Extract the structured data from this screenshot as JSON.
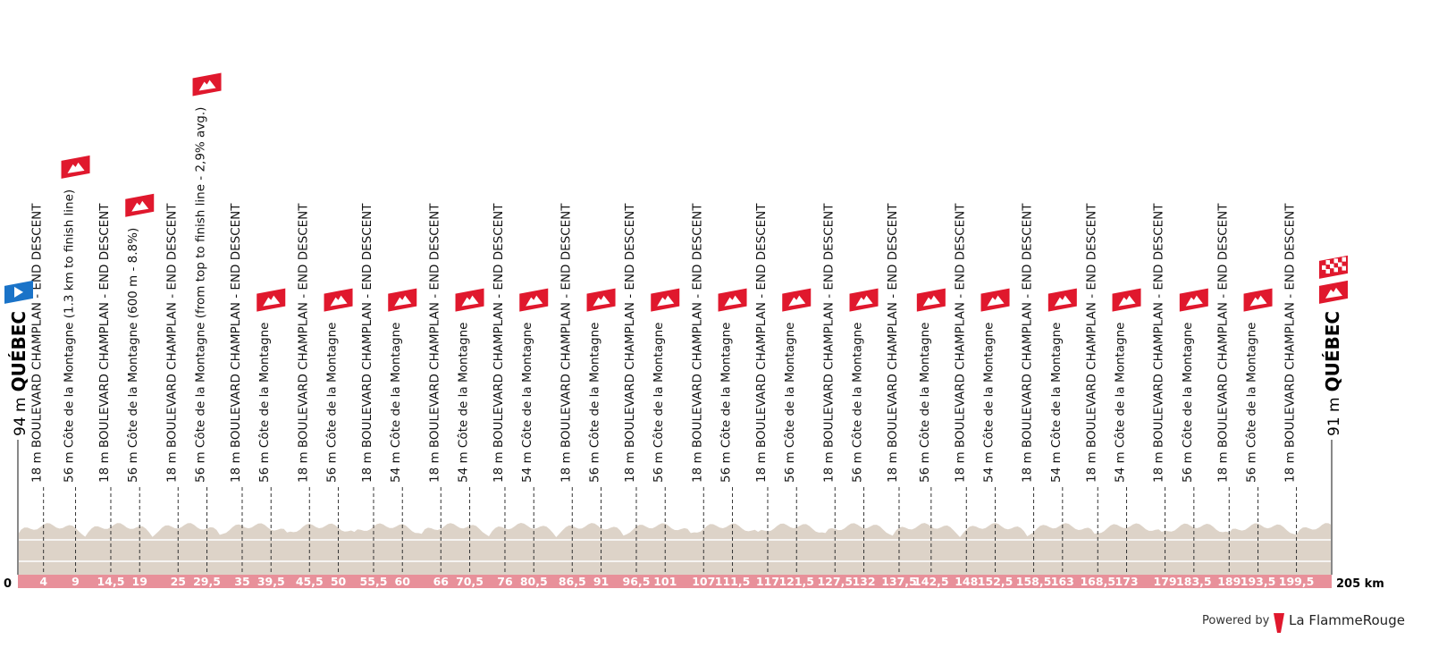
{
  "start": {
    "altitude": "94 m",
    "name": "QUÉBEC"
  },
  "finish": {
    "altitude": "91 m",
    "name": "QUÉBEC"
  },
  "axis": {
    "start": 0,
    "end": 205,
    "end_label": "205 km"
  },
  "waypoints": [
    {
      "km": 4,
      "label": "18 m BOULEVARD CHAMPLAN - END DESCENT"
    },
    {
      "km": 9,
      "label": "56 m Côte de la Montagne (1.3 km to finish line)",
      "flag": "climb"
    },
    {
      "km": {
        "value": 14.5,
        "label": "14,5"
      },
      "label": "18 m BOULEVARD CHAMPLAN - END DESCENT"
    },
    {
      "km": 19,
      "label": "56 m Côte de la Montagne (600 m - 8.8%)",
      "flag": "climb"
    },
    {
      "km": 25,
      "label": "18 m BOULEVARD CHAMPLAN - END DESCENT"
    },
    {
      "km": {
        "value": 29.5,
        "label": "29,5"
      },
      "label": "56 m Côte de la Montagne (from top to finish line - 2,9% avg.)",
      "flag": "climb"
    },
    {
      "km": 35,
      "label": "18 m BOULEVARD CHAMPLAN - END DESCENT"
    },
    {
      "km": {
        "value": 39.5,
        "label": "39,5"
      },
      "label": "56 m Côte de la Montagne",
      "flag": "climb"
    },
    {
      "km": {
        "value": 45.5,
        "label": "45,5"
      },
      "label": "18 m BOULEVARD CHAMPLAN - END DESCENT"
    },
    {
      "km": 50,
      "label": "56 m Côte de la Montagne",
      "flag": "climb"
    },
    {
      "km": {
        "value": 55.5,
        "label": "55,5"
      },
      "label": "18 m BOULEVARD CHAMPLAN - END DESCENT"
    },
    {
      "km": 60,
      "label": "54 m Côte de la Montagne",
      "flag": "climb"
    },
    {
      "km": 66,
      "label": "18 m BOULEVARD CHAMPLAN - END DESCENT"
    },
    {
      "km": {
        "value": 70.5,
        "label": "70,5"
      },
      "label": "54 m Côte de la Montagne",
      "flag": "climb"
    },
    {
      "km": 76,
      "label": "18 m BOULEVARD CHAMPLAN - END DESCENT"
    },
    {
      "km": {
        "value": 80.5,
        "label": "80,5"
      },
      "label": "54 m Côte de la Montagne",
      "flag": "climb"
    },
    {
      "km": {
        "value": 86.5,
        "label": "86,5"
      },
      "label": "18 m BOULEVARD CHAMPLAN - END DESCENT"
    },
    {
      "km": 91,
      "label": "56 m Côte de la Montagne",
      "flag": "climb"
    },
    {
      "km": {
        "value": 96.5,
        "label": "96,5"
      },
      "label": "18 m BOULEVARD CHAMPLAN - END DESCENT"
    },
    {
      "km": 101,
      "label": "56 m Côte de la Montagne",
      "flag": "climb"
    },
    {
      "km": 107,
      "label": "18 m BOULEVARD CHAMPLAN - END DESCENT"
    },
    {
      "km": {
        "value": 111.5,
        "label": "111,5"
      },
      "label": "56 m Côte de la Montagne",
      "flag": "climb"
    },
    {
      "km": 117,
      "label": "18 m BOULEVARD CHAMPLAN - END DESCENT"
    },
    {
      "km": {
        "value": 121.5,
        "label": "121,5"
      },
      "label": "56 m Côte de la Montagne",
      "flag": "climb"
    },
    {
      "km": {
        "value": 127.5,
        "label": "127,5"
      },
      "label": "18 m BOULEVARD CHAMPLAN - END DESCENT"
    },
    {
      "km": 132,
      "label": "56 m Côte de la Montagne",
      "flag": "climb"
    },
    {
      "km": {
        "value": 137.5,
        "label": "137,5"
      },
      "label": "18 m BOULEVARD CHAMPLAN - END DESCENT"
    },
    {
      "km": {
        "value": 142.5,
        "label": "142,5"
      },
      "label": "56 m Côte de la Montagne",
      "flag": "climb"
    },
    {
      "km": 148,
      "label": "18 m BOULEVARD CHAMPLAN - END DESCENT"
    },
    {
      "km": {
        "value": 152.5,
        "label": "152,5"
      },
      "label": "54 m Côte de la Montagne",
      "flag": "climb"
    },
    {
      "km": {
        "value": 158.5,
        "label": "158,5"
      },
      "label": "18 m BOULEVARD CHAMPLAN - END DESCENT"
    },
    {
      "km": 163,
      "label": "54 m Côte de la Montagne",
      "flag": "climb"
    },
    {
      "km": {
        "value": 168.5,
        "label": "168,5"
      },
      "label": "18 m BOULEVARD CHAMPLAN - END DESCENT"
    },
    {
      "km": 173,
      "label": "54 m Côte de la Montagne",
      "flag": "climb"
    },
    {
      "km": 179,
      "label": "18 m BOULEVARD CHAMPLAN - END DESCENT"
    },
    {
      "km": {
        "value": 183.5,
        "label": "183,5"
      },
      "label": "56 m Côte de la Montagne",
      "flag": "climb"
    },
    {
      "km": 189,
      "label": "18 m BOULEVARD CHAMPLAN - END DESCENT"
    },
    {
      "km": {
        "value": 193.5,
        "label": "193,5"
      },
      "label": "56 m Côte de la Montagne",
      "flag": "climb"
    },
    {
      "km": {
        "value": 199.5,
        "label": "199,5"
      },
      "label": "18 m BOULEVARD CHAMPLAN - END DESCENT"
    }
  ],
  "footer": {
    "powered": "Powered by",
    "brand": "La FlammeRouge"
  }
}
